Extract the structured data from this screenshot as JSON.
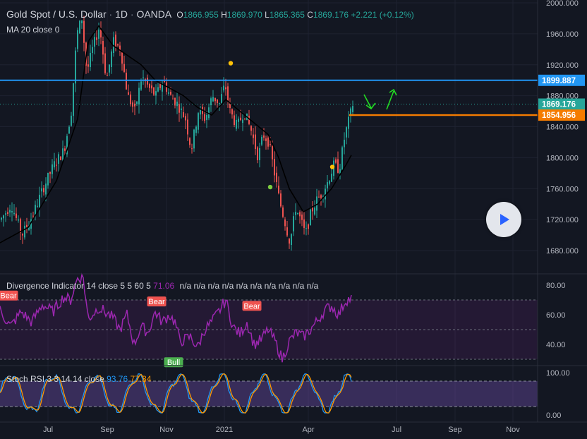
{
  "header": {
    "symbol": "Gold Spot / U.S. Dollar",
    "interval": "1D",
    "exchange": "OANDA",
    "open_label": "O",
    "open": "1866.955",
    "high_label": "H",
    "high": "1869.970",
    "low_label": "L",
    "low": "1865.365",
    "close_label": "C",
    "close": "1869.176",
    "change": "+2.221 (+0.12%)",
    "ma_label": "MA 20 close 0"
  },
  "divergence_legend": {
    "label": "Divergence Indicator 14 close 5 5 60 5",
    "value": "71.06",
    "na_values": "n/a  n/a  n/a  n/a  n/a  n/a  n/a  n/a  n/a  n/a"
  },
  "stoch_legend": {
    "label": "Stoch RSI 3 3 14 14 close",
    "k_value": "93.76",
    "d_value": "77.34"
  },
  "price_tags": {
    "upper_line": "1899.887",
    "current": "1869.176",
    "lower_line": "1854.956"
  },
  "colors": {
    "background": "#131722",
    "up": "#26a69a",
    "down": "#ef5350",
    "ma": "#000000",
    "blue_line": "#2196f3",
    "orange_line": "#f57c00",
    "current_tag": "#26a69a",
    "divergence": "#9c27b0",
    "stoch_k": "#2196f3",
    "stoch_d": "#ff9800",
    "arrows": "#22dd22"
  },
  "icons": {
    "play": "play-icon"
  },
  "chart_data": [
    {
      "type": "candlestick",
      "title": "Gold Spot / U.S. Dollar",
      "ylim": [
        1650,
        2000
      ],
      "y_ticks": [
        2000,
        1960,
        1920,
        1880,
        1840,
        1800,
        1760,
        1720,
        1680
      ],
      "y_tick_labels": [
        "2000.000",
        "1960.000",
        "1920.000",
        "1880.000",
        "1840.000",
        "1800.000",
        "1760.000",
        "1720.000",
        "1680.000"
      ],
      "x_ticks": [
        "Jul",
        "Sep",
        "Nov",
        "2021",
        "Apr",
        "Jul",
        "Sep",
        "Nov"
      ],
      "price_waypoints": [
        [
          0,
          1720
        ],
        [
          15,
          1740
        ],
        [
          30,
          1700
        ],
        [
          45,
          1725
        ],
        [
          60,
          1760
        ],
        [
          75,
          1790
        ],
        [
          90,
          1810
        ],
        [
          100,
          1860
        ],
        [
          108,
          1960
        ],
        [
          115,
          1980
        ],
        [
          122,
          1910
        ],
        [
          130,
          1940
        ],
        [
          140,
          1970
        ],
        [
          150,
          1900
        ],
        [
          160,
          1950
        ],
        [
          170,
          1940
        ],
        [
          180,
          1880
        ],
        [
          190,
          1860
        ],
        [
          200,
          1905
        ],
        [
          210,
          1890
        ],
        [
          220,
          1880
        ],
        [
          230,
          1900
        ],
        [
          240,
          1880
        ],
        [
          250,
          1870
        ],
        [
          262,
          1850
        ],
        [
          270,
          1810
        ],
        [
          280,
          1860
        ],
        [
          290,
          1850
        ],
        [
          300,
          1880
        ],
        [
          310,
          1870
        ],
        [
          318,
          1895
        ],
        [
          325,
          1860
        ],
        [
          335,
          1840
        ],
        [
          345,
          1860
        ],
        [
          355,
          1835
        ],
        [
          365,
          1800
        ],
        [
          372,
          1830
        ],
        [
          380,
          1820
        ],
        [
          388,
          1780
        ],
        [
          395,
          1745
        ],
        [
          402,
          1720
        ],
        [
          410,
          1690
        ],
        [
          418,
          1735
        ],
        [
          425,
          1720
        ],
        [
          432,
          1700
        ],
        [
          440,
          1730
        ],
        [
          448,
          1745
        ],
        [
          456,
          1755
        ],
        [
          464,
          1770
        ],
        [
          472,
          1790
        ],
        [
          480,
          1785
        ],
        [
          488,
          1830
        ],
        [
          494,
          1850
        ],
        [
          499,
          1869
        ]
      ],
      "ma20_waypoints": [
        [
          0,
          1690
        ],
        [
          40,
          1710
        ],
        [
          80,
          1770
        ],
        [
          110,
          1850
        ],
        [
          125,
          1950
        ],
        [
          140,
          1970
        ],
        [
          160,
          1945
        ],
        [
          200,
          1920
        ],
        [
          220,
          1900
        ],
        [
          240,
          1890
        ],
        [
          260,
          1880
        ],
        [
          280,
          1865
        ],
        [
          300,
          1855
        ],
        [
          320,
          1875
        ],
        [
          340,
          1860
        ],
        [
          360,
          1845
        ],
        [
          380,
          1830
        ],
        [
          395,
          1800
        ],
        [
          410,
          1760
        ],
        [
          430,
          1730
        ],
        [
          450,
          1740
        ],
        [
          470,
          1760
        ],
        [
          490,
          1790
        ],
        [
          499,
          1805
        ]
      ],
      "dots": [
        {
          "x": 327,
          "value": 1922,
          "color": "#ffc107"
        },
        {
          "x": 383,
          "value": 1762,
          "color": "#7ccc3f"
        },
        {
          "x": 471,
          "value": 1788,
          "color": "#ffc107"
        }
      ],
      "horizontal_lines": [
        {
          "value": 1899.887,
          "color": "#2196f3",
          "label": "1899.887"
        },
        {
          "value": 1854.956,
          "color": "#f57c00",
          "label": "1854.956"
        }
      ]
    },
    {
      "type": "line",
      "title": "Divergence Indicator 14 close 5 5 60 5",
      "ylim": [
        25,
        90
      ],
      "y_ticks": [
        80,
        60,
        40
      ],
      "y_tick_labels": [
        "80.00",
        "60.00",
        "40.00"
      ],
      "bands": [
        70,
        50,
        30
      ],
      "series": [
        {
          "name": "Divergence Indicator",
          "waypoints": [
            [
              0,
              63
            ],
            [
              15,
              52
            ],
            [
              30,
              62
            ],
            [
              45,
              55
            ],
            [
              60,
              67
            ],
            [
              75,
              62
            ],
            [
              90,
              72
            ],
            [
              100,
              70
            ],
            [
              110,
              85
            ],
            [
              118,
              85
            ],
            [
              125,
              57
            ],
            [
              140,
              65
            ],
            [
              160,
              58
            ],
            [
              170,
              50
            ],
            [
              180,
              60
            ],
            [
              190,
              40
            ],
            [
              200,
              52
            ],
            [
              210,
              48
            ],
            [
              220,
              62
            ],
            [
              230,
              55
            ],
            [
              240,
              60
            ],
            [
              248,
              55
            ],
            [
              255,
              42
            ],
            [
              270,
              45
            ],
            [
              280,
              38
            ],
            [
              290,
              50
            ],
            [
              300,
              55
            ],
            [
              310,
              62
            ],
            [
              320,
              70
            ],
            [
              330,
              52
            ],
            [
              340,
              47
            ],
            [
              350,
              55
            ],
            [
              360,
              40
            ],
            [
              370,
              43
            ],
            [
              380,
              50
            ],
            [
              390,
              42
            ],
            [
              400,
              30
            ],
            [
              410,
              42
            ],
            [
              420,
              48
            ],
            [
              430,
              45
            ],
            [
              440,
              50
            ],
            [
              450,
              56
            ],
            [
              460,
              63
            ],
            [
              470,
              66
            ],
            [
              480,
              60
            ],
            [
              490,
              70
            ],
            [
              499,
              71
            ]
          ]
        }
      ],
      "labels": [
        {
          "text": "Bear",
          "x": 12,
          "value": 73,
          "color": "#ef5350"
        },
        {
          "text": "Bear",
          "x": 222,
          "value": 69,
          "color": "#ef5350"
        },
        {
          "text": "Bull",
          "x": 246,
          "value": 28,
          "color": "#4caf50"
        },
        {
          "text": "Bear",
          "x": 357,
          "value": 66,
          "color": "#ef5350"
        }
      ]
    },
    {
      "type": "line",
      "title": "Stoch RSI 3 3 14 14 close",
      "ylim": [
        0,
        100
      ],
      "y_ticks": [
        100,
        0
      ],
      "y_tick_labels": [
        "100.00",
        "0.00"
      ],
      "bands": [
        80,
        20
      ],
      "series": [
        {
          "name": "K",
          "values_formula": "oscillating 8-95"
        },
        {
          "name": "D",
          "values_formula": "oscillating smoothed"
        }
      ]
    }
  ]
}
